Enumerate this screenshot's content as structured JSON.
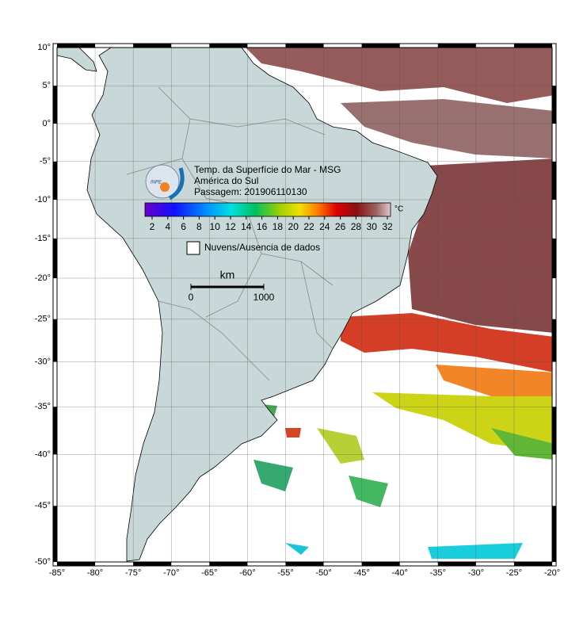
{
  "title": {
    "lines": [
      "Temp. da Superfície do Mar - MSG",
      "América do Sul",
      "Passagem: 201906110130"
    ]
  },
  "logo_text": "INPE",
  "colorbar": {
    "unit": "°C",
    "ticks": [
      2,
      4,
      6,
      8,
      10,
      12,
      14,
      16,
      18,
      20,
      22,
      24,
      26,
      28,
      30,
      32
    ]
  },
  "legend": {
    "label": "Nuvens/Ausencia de dados"
  },
  "scale": {
    "unit": "km",
    "ticks": [
      0,
      1000
    ]
  },
  "axes": {
    "xticks": [
      {
        "value": -85,
        "label": "-85°"
      },
      {
        "value": -80,
        "label": "-80°"
      },
      {
        "value": -75,
        "label": "-75°"
      },
      {
        "value": -70,
        "label": "-70°"
      },
      {
        "value": -65,
        "label": "-65°"
      },
      {
        "value": -60,
        "label": "-60°"
      },
      {
        "value": -55,
        "label": "-55°"
      },
      {
        "value": -50,
        "label": "-50°"
      },
      {
        "value": -45,
        "label": "-45°"
      },
      {
        "value": -40,
        "label": "-40°"
      },
      {
        "value": -35,
        "label": "-35°"
      },
      {
        "value": -30,
        "label": "-30°"
      },
      {
        "value": -25,
        "label": "-25°"
      },
      {
        "value": -20,
        "label": "-20°"
      }
    ],
    "yticks": [
      {
        "value": 10,
        "label": "10°"
      },
      {
        "value": 5,
        "label": "5°"
      },
      {
        "value": 0,
        "label": "0°"
      },
      {
        "value": -5,
        "label": "-5°"
      },
      {
        "value": -10,
        "label": "-10°"
      },
      {
        "value": -15,
        "label": "-15°"
      },
      {
        "value": -20,
        "label": "-20°"
      },
      {
        "value": -25,
        "label": "-25°"
      },
      {
        "value": -30,
        "label": "-30°"
      },
      {
        "value": -35,
        "label": "-35°"
      },
      {
        "value": -40,
        "label": "-40°"
      },
      {
        "value": -45,
        "label": "-45°"
      },
      {
        "value": -50,
        "label": "-50°"
      }
    ]
  }
}
